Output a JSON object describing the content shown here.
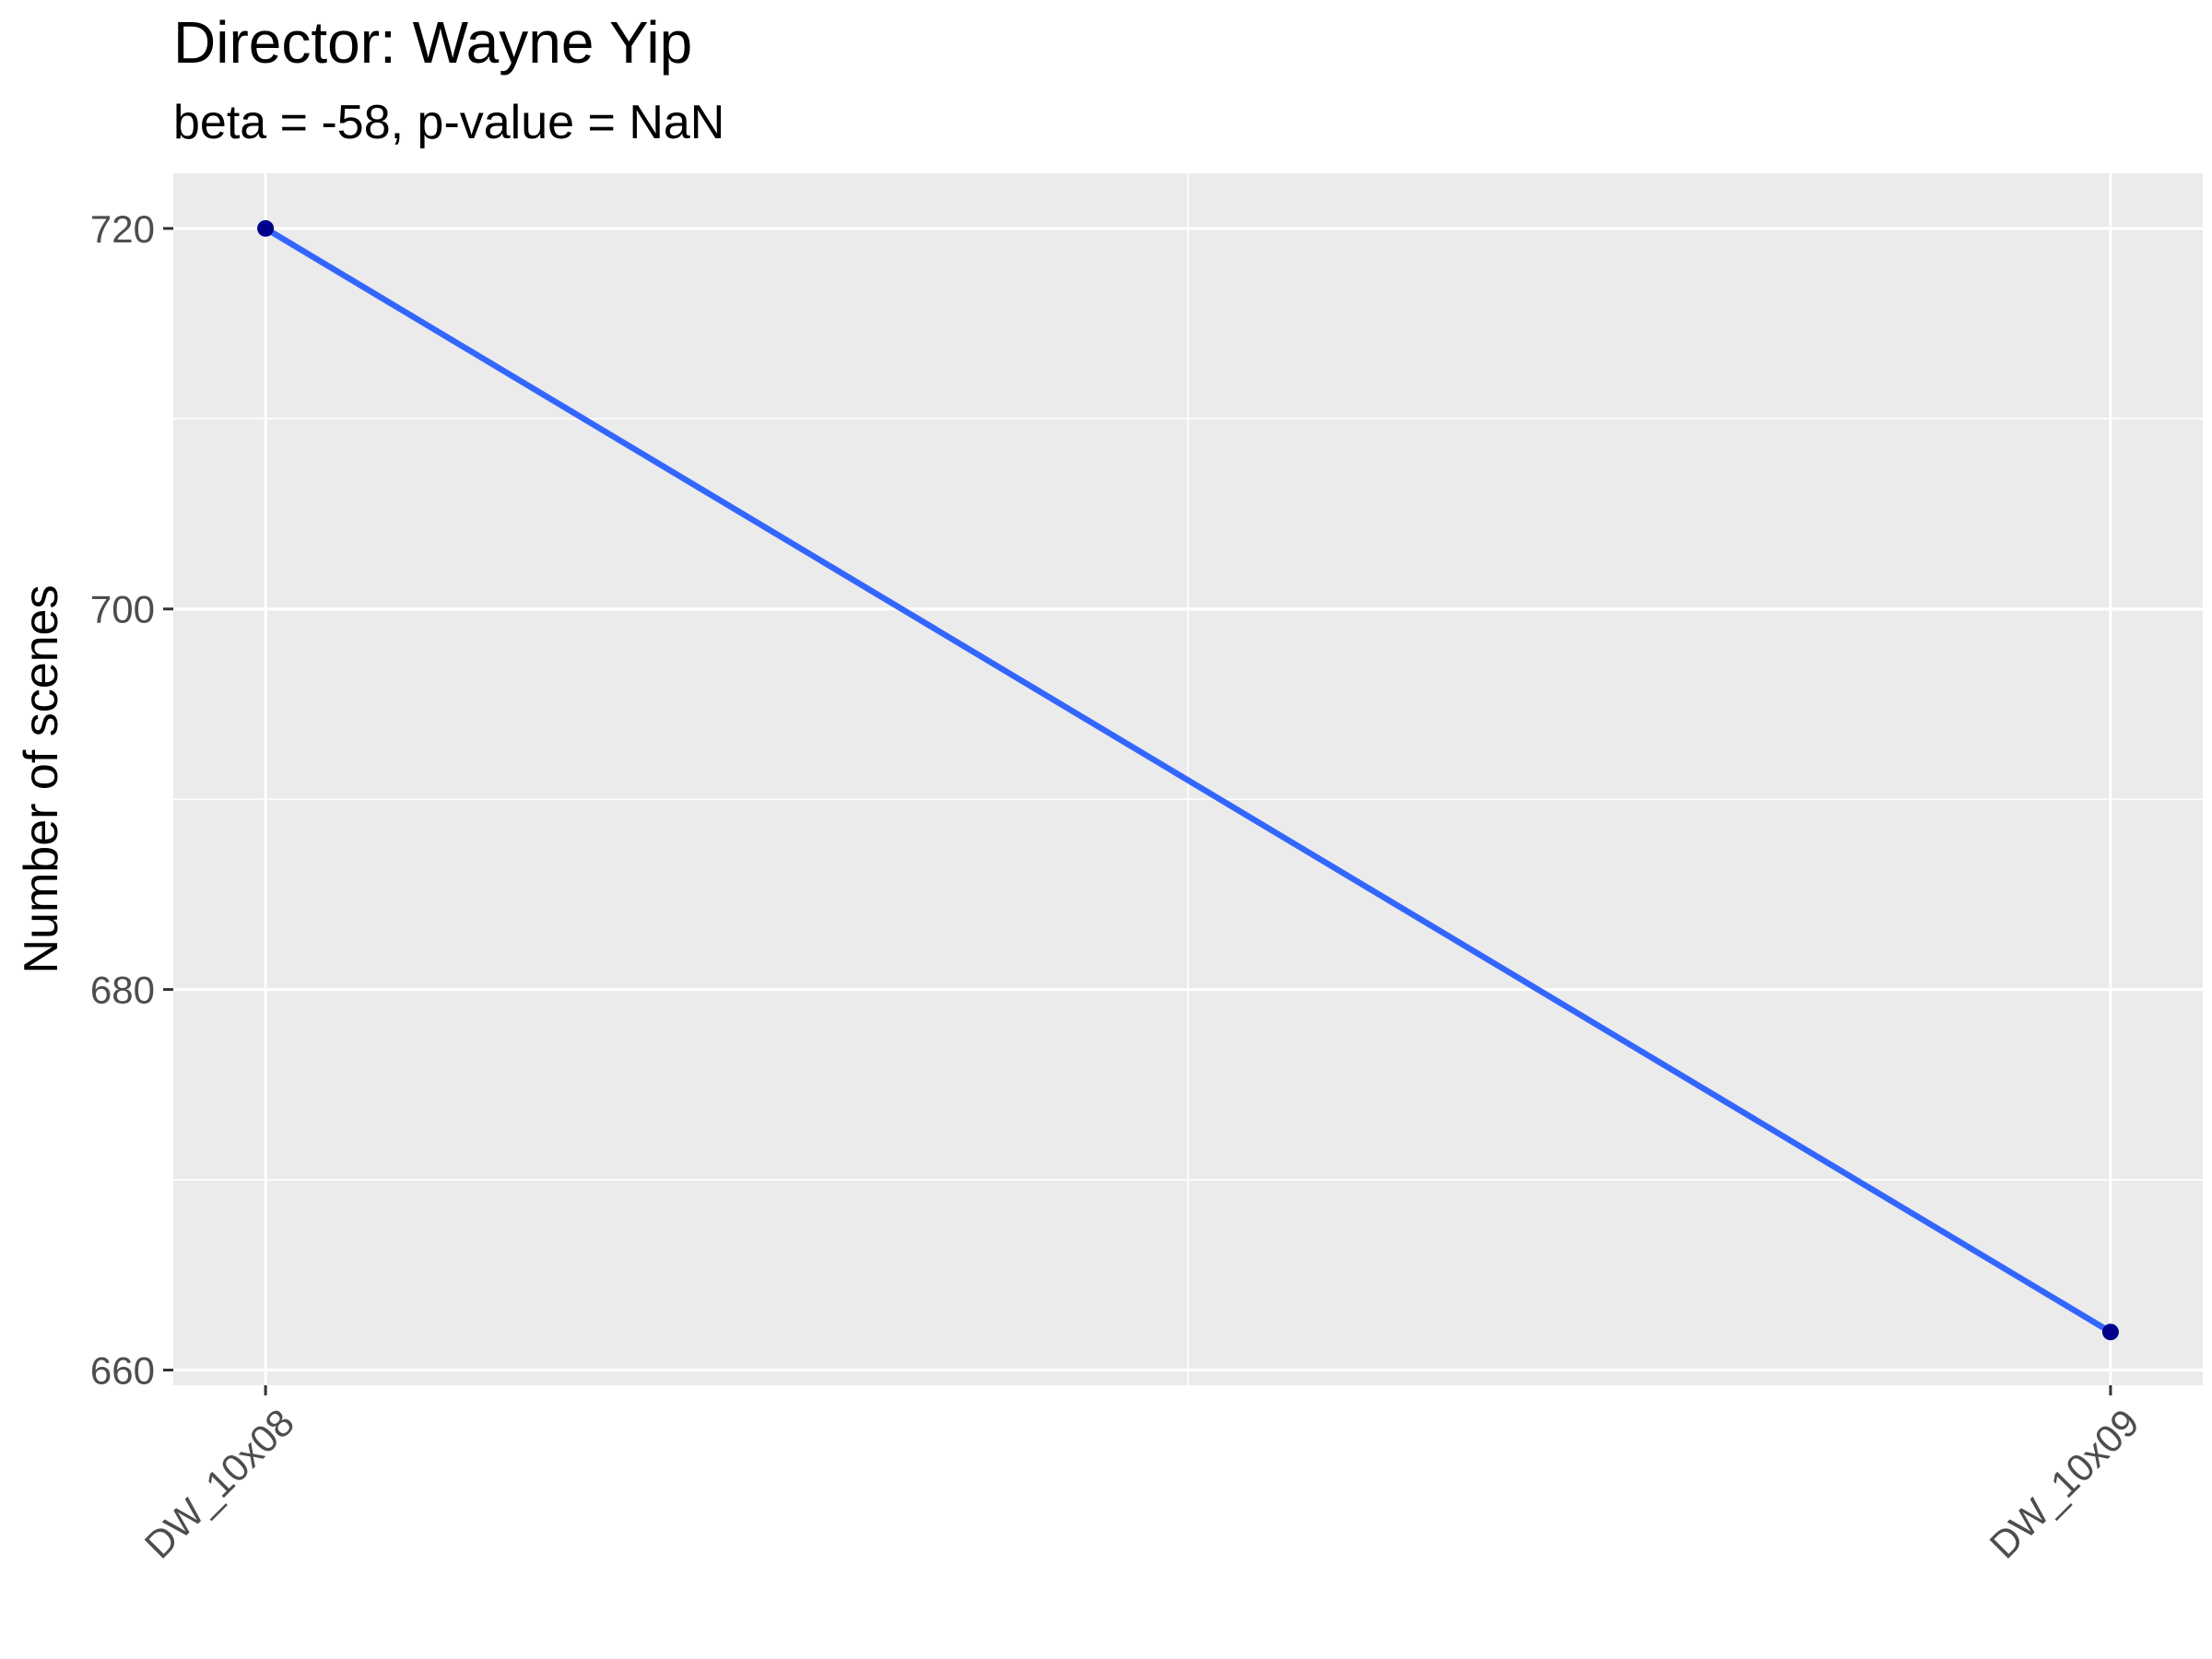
{
  "chart_data": {
    "type": "line",
    "title": "Director: Wayne Yip",
    "subtitle": "beta = -58, p-value = NaN",
    "xlabel": "",
    "ylabel": "Number of scenes",
    "categories": [
      "DW_10x08",
      "DW_10x09"
    ],
    "series": [
      {
        "values": [
          720,
          662
        ]
      }
    ],
    "ylim": [
      659.2,
      722.9
    ],
    "yticks": [
      660,
      680,
      700,
      720
    ],
    "grid": true,
    "legend": "none",
    "colors": {
      "panel_background": "#ebebeb",
      "grid": "#ffffff",
      "line": "#3366ff",
      "point": "#00008b"
    }
  }
}
